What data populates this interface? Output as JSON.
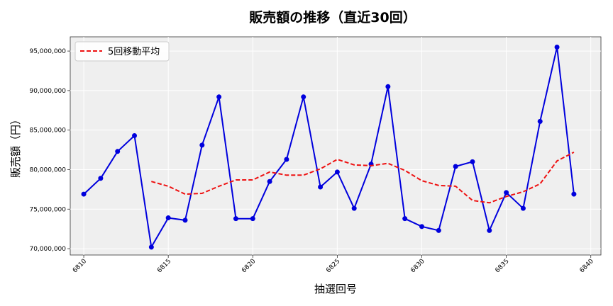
{
  "chart_data": {
    "type": "line",
    "title": "販売額の推移（直近30回）",
    "xlabel": "抽選回号",
    "ylabel": "販売額（円）",
    "x": [
      6810,
      6811,
      6812,
      6813,
      6814,
      6815,
      6816,
      6817,
      6818,
      6819,
      6820,
      6821,
      6822,
      6823,
      6824,
      6825,
      6826,
      6827,
      6828,
      6829,
      6830,
      6831,
      6832,
      6833,
      6834,
      6835,
      6836,
      6837,
      6838,
      6839
    ],
    "xlim": [
      6809.2,
      6840.6
    ],
    "ylim": [
      69200000,
      96800000
    ],
    "xticks": [
      6810,
      6815,
      6820,
      6825,
      6830,
      6835,
      6840
    ],
    "yticks": [
      70000000,
      75000000,
      80000000,
      85000000,
      90000000,
      95000000
    ],
    "ytick_labels": [
      "70,000,000",
      "75,000,000",
      "80,000,000",
      "85,000,000",
      "90,000,000",
      "95,000,000"
    ],
    "grid": true,
    "legend_position": "top-left",
    "series": [
      {
        "name": "",
        "color": "#0000dd",
        "style": "solid-markers",
        "values": [
          76900000,
          78900000,
          82300000,
          84300000,
          70200000,
          73900000,
          73600000,
          83100000,
          89200000,
          73800000,
          73800000,
          78500000,
          81300000,
          89200000,
          77800000,
          79700000,
          75100000,
          80700000,
          90500000,
          73800000,
          72800000,
          72300000,
          80400000,
          81000000,
          72300000,
          77100000,
          75100000,
          86100000,
          95500000,
          76900000
        ]
      },
      {
        "name": "5回移動平均",
        "color": "#ee1111",
        "style": "dashed",
        "values": [
          null,
          null,
          null,
          null,
          78500000,
          77900000,
          76900000,
          77000000,
          77900000,
          78700000,
          78700000,
          79700000,
          79300000,
          79300000,
          80100000,
          81300000,
          80600000,
          80500000,
          80800000,
          79900000,
          78600000,
          78000000,
          77900000,
          76100000,
          75800000,
          76600000,
          77200000,
          78200000,
          81100000,
          82200000
        ]
      }
    ]
  }
}
